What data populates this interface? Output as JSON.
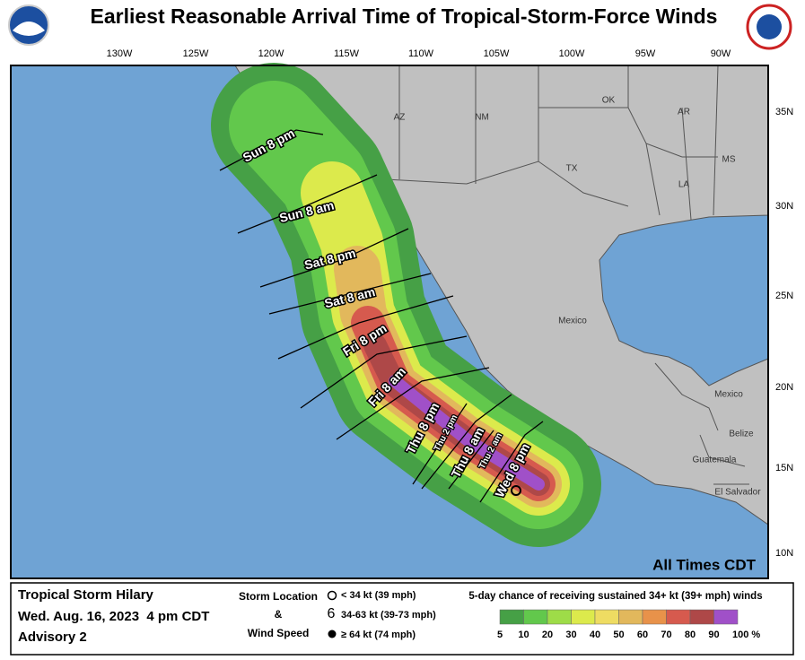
{
  "header": {
    "title": "Earliest Reasonable Arrival Time of Tropical-Storm-Force Winds"
  },
  "map": {
    "longitude_labels": [
      "130W",
      "125W",
      "120W",
      "115W",
      "110W",
      "105W",
      "100W",
      "95W",
      "90W"
    ],
    "latitude_labels": [
      "35N",
      "30N",
      "25N",
      "20N",
      "15N",
      "10N"
    ],
    "place_labels": [
      "AZ",
      "NM",
      "OK",
      "AR",
      "TX",
      "MS",
      "LA",
      "Mexico",
      "Mexico",
      "Belize",
      "Guatemala",
      "El Salvador"
    ],
    "arrival_labels": [
      "Sun 8 pm",
      "Sun 8 am",
      "Sat 8 pm",
      "Sat 8 am",
      "Fri 8 pm",
      "Fri 8 am",
      "Thu 8 pm",
      "Thu 2 pm",
      "Thu 8 am",
      "Thu 2 am",
      "Wed 8 pm"
    ],
    "note": "All Times CDT"
  },
  "footer": {
    "storm_name": "Tropical Storm Hilary",
    "issued": "Wed. Aug. 16, 2023  4 pm CDT",
    "advisory": "Advisory 2",
    "legend_title": [
      "Storm Location",
      "&",
      "Wind Speed"
    ],
    "wind_classes": [
      "< 34 kt (39 mph)",
      "34-63 kt (39-73 mph)",
      "≥ 64 kt (74 mph)"
    ],
    "scale_title": "5-day chance of receiving sustained 34+ kt (39+ mph) winds"
  },
  "scale": {
    "colors": [
      "#46a046",
      "#62c84c",
      "#9edc48",
      "#dcea4c",
      "#eedc62",
      "#e2b85c",
      "#e8924a",
      "#d65a4e",
      "#ae4848",
      "#a050c8"
    ],
    "labels": [
      "5",
      "10",
      "20",
      "30",
      "40",
      "50",
      "60",
      "70",
      "80",
      "90",
      "100 %"
    ]
  }
}
